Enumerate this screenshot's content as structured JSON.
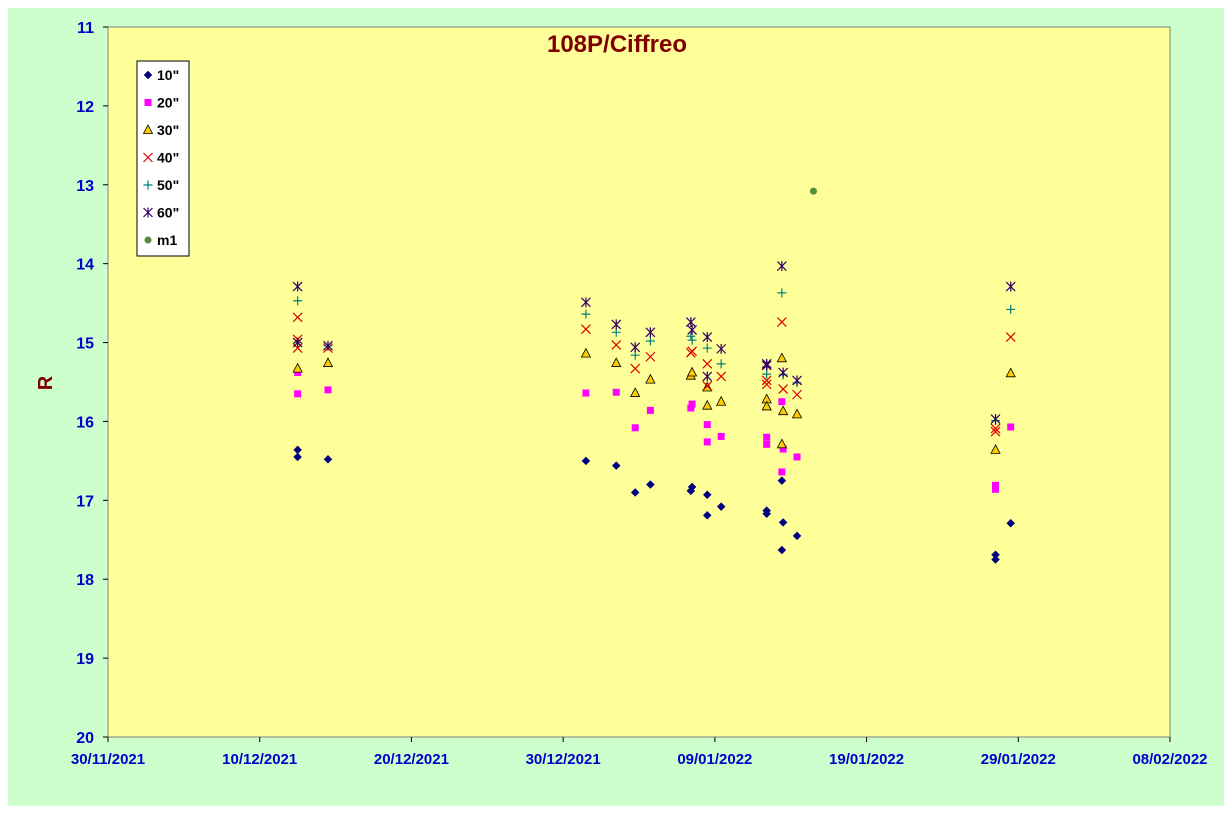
{
  "chart_data": {
    "type": "scatter",
    "title": "108P/Ciffreo",
    "xlabel": "",
    "ylabel": "R",
    "x_axis": {
      "type": "date",
      "min": "30/11/2021",
      "max": "08/02/2022",
      "tick_labels": [
        "30/11/2021",
        "10/12/2021",
        "20/12/2021",
        "30/12/2021",
        "09/01/2022",
        "19/01/2022",
        "29/01/2022",
        "08/02/2022"
      ]
    },
    "y_axis": {
      "min": 11,
      "max": 20,
      "reversed": true,
      "tick_labels": [
        "11",
        "12",
        "13",
        "14",
        "15",
        "16",
        "17",
        "18",
        "19",
        "20"
      ]
    },
    "grid": false,
    "legend_position": "top-left",
    "background": {
      "outer": "#ccffcc",
      "plot": "#ffff99"
    },
    "series": [
      {
        "name": "10\"",
        "marker": "diamond",
        "color": "#000080",
        "points": [
          [
            "12/12/2021 12:00",
            16.36
          ],
          [
            "12/12/2021 12:00",
            16.45
          ],
          [
            "14/12/2021 12:00",
            16.48
          ],
          [
            "31/12/2021 12:00",
            16.5
          ],
          [
            "02/01/2022 12:00",
            16.56
          ],
          [
            "03/01/2022 18:00",
            16.9
          ],
          [
            "04/01/2022 18:00",
            16.8
          ],
          [
            "07/01/2022 10:00",
            16.88
          ],
          [
            "07/01/2022 12:00",
            16.83
          ],
          [
            "08/01/2022 12:00",
            16.93
          ],
          [
            "08/01/2022 12:00",
            17.19
          ],
          [
            "09/01/2022 10:00",
            17.08
          ],
          [
            "12/01/2022 10:00",
            17.13
          ],
          [
            "12/01/2022 10:00",
            17.17
          ],
          [
            "13/01/2022 10:00",
            16.75
          ],
          [
            "13/01/2022 12:00",
            17.28
          ],
          [
            "13/01/2022 10:00",
            17.63
          ],
          [
            "14/01/2022 10:00",
            17.45
          ],
          [
            "27/01/2022 12:00",
            17.69
          ],
          [
            "27/01/2022 12:00",
            17.75
          ],
          [
            "28/01/2022 12:00",
            17.29
          ]
        ]
      },
      {
        "name": "20\"",
        "marker": "square",
        "color": "#ff00ff",
        "points": [
          [
            "12/12/2021 12:00",
            15.38
          ],
          [
            "12/12/2021 12:00",
            15.65
          ],
          [
            "14/12/2021 12:00",
            15.6
          ],
          [
            "31/12/2021 12:00",
            15.64
          ],
          [
            "02/01/2022 12:00",
            15.63
          ],
          [
            "03/01/2022 18:00",
            16.08
          ],
          [
            "04/01/2022 18:00",
            15.86
          ],
          [
            "07/01/2022 10:00",
            15.83
          ],
          [
            "07/01/2022 12:00",
            15.78
          ],
          [
            "08/01/2022 12:00",
            16.04
          ],
          [
            "08/01/2022 12:00",
            16.26
          ],
          [
            "09/01/2022 10:00",
            16.19
          ],
          [
            "12/01/2022 10:00",
            16.2
          ],
          [
            "12/01/2022 10:00",
            16.29
          ],
          [
            "13/01/2022 10:00",
            15.75
          ],
          [
            "13/01/2022 12:00",
            16.35
          ],
          [
            "13/01/2022 10:00",
            16.64
          ],
          [
            "14/01/2022 10:00",
            16.45
          ],
          [
            "27/01/2022 12:00",
            16.81
          ],
          [
            "27/01/2022 12:00",
            16.86
          ],
          [
            "28/01/2022 12:00",
            16.07
          ]
        ]
      },
      {
        "name": "30\"",
        "marker": "triangle",
        "color": "#ffcc00",
        "points": [
          [
            "12/12/2021 12:00",
            15.33
          ],
          [
            "14/12/2021 12:00",
            15.26
          ],
          [
            "31/12/2021 12:00",
            15.14
          ],
          [
            "02/01/2022 12:00",
            15.26
          ],
          [
            "03/01/2022 18:00",
            15.64
          ],
          [
            "04/01/2022 18:00",
            15.47
          ],
          [
            "07/01/2022 10:00",
            15.42
          ],
          [
            "07/01/2022 12:00",
            15.38
          ],
          [
            "08/01/2022 12:00",
            15.57
          ],
          [
            "08/01/2022 12:00",
            15.8
          ],
          [
            "09/01/2022 10:00",
            15.75
          ],
          [
            "12/01/2022 10:00",
            15.72
          ],
          [
            "12/01/2022 10:00",
            15.81
          ],
          [
            "13/01/2022 10:00",
            15.2
          ],
          [
            "13/01/2022 12:00",
            15.87
          ],
          [
            "13/01/2022 10:00",
            16.29
          ],
          [
            "14/01/2022 10:00",
            15.91
          ],
          [
            "27/01/2022 12:00",
            16.36
          ],
          [
            "28/01/2022 12:00",
            15.39
          ]
        ]
      },
      {
        "name": "40\"",
        "marker": "x",
        "color": "#dd0000",
        "points": [
          [
            "12/12/2021 12:00",
            14.68
          ],
          [
            "12/12/2021 12:00",
            14.96
          ],
          [
            "12/12/2021 12:00",
            15.07
          ],
          [
            "14/12/2021 12:00",
            15.07
          ],
          [
            "31/12/2021 12:00",
            14.83
          ],
          [
            "02/01/2022 12:00",
            15.03
          ],
          [
            "03/01/2022 18:00",
            15.33
          ],
          [
            "04/01/2022 18:00",
            15.18
          ],
          [
            "07/01/2022 10:00",
            15.13
          ],
          [
            "07/01/2022 12:00",
            15.11
          ],
          [
            "08/01/2022 12:00",
            15.27
          ],
          [
            "08/01/2022 12:00",
            15.55
          ],
          [
            "09/01/2022 10:00",
            15.43
          ],
          [
            "12/01/2022 10:00",
            15.48
          ],
          [
            "12/01/2022 10:00",
            15.53
          ],
          [
            "13/01/2022 10:00",
            14.74
          ],
          [
            "13/01/2022 12:00",
            15.59
          ],
          [
            "14/01/2022 10:00",
            15.66
          ],
          [
            "27/01/2022 12:00",
            16.09
          ],
          [
            "27/01/2022 12:00",
            16.13
          ],
          [
            "28/01/2022 12:00",
            14.93
          ]
        ]
      },
      {
        "name": "50\"",
        "marker": "plus",
        "color": "#008080",
        "points": [
          [
            "12/12/2021 12:00",
            14.47
          ],
          [
            "12/12/2021 12:00",
            15.0
          ],
          [
            "14/12/2021 12:00",
            15.04
          ],
          [
            "31/12/2021 12:00",
            14.64
          ],
          [
            "02/01/2022 12:00",
            14.87
          ],
          [
            "03/01/2022 18:00",
            15.16
          ],
          [
            "04/01/2022 18:00",
            14.98
          ],
          [
            "07/01/2022 10:00",
            14.92
          ],
          [
            "07/01/2022 12:00",
            14.97
          ],
          [
            "08/01/2022 12:00",
            15.07
          ],
          [
            "09/01/2022 10:00",
            15.27
          ],
          [
            "12/01/2022 10:00",
            15.31
          ],
          [
            "12/01/2022 10:00",
            15.4
          ],
          [
            "13/01/2022 10:00",
            14.37
          ],
          [
            "13/01/2022 12:00",
            15.41
          ],
          [
            "14/01/2022 10:00",
            15.51
          ],
          [
            "27/01/2022 12:00",
            15.99
          ],
          [
            "28/01/2022 12:00",
            14.58
          ]
        ]
      },
      {
        "name": "60\"",
        "marker": "star",
        "color": "#330066",
        "points": [
          [
            "12/12/2021 12:00",
            14.29
          ],
          [
            "12/12/2021 12:00",
            15.0
          ],
          [
            "14/12/2021 12:00",
            15.04
          ],
          [
            "31/12/2021 12:00",
            14.49
          ],
          [
            "02/01/2022 12:00",
            14.77
          ],
          [
            "03/01/2022 18:00",
            15.06
          ],
          [
            "04/01/2022 18:00",
            14.87
          ],
          [
            "07/01/2022 10:00",
            14.74
          ],
          [
            "07/01/2022 12:00",
            14.84
          ],
          [
            "08/01/2022 12:00",
            14.93
          ],
          [
            "08/01/2022 12:00",
            15.43
          ],
          [
            "09/01/2022 10:00",
            15.08
          ],
          [
            "12/01/2022 10:00",
            15.27
          ],
          [
            "12/01/2022 10:00",
            15.29
          ],
          [
            "13/01/2022 10:00",
            14.03
          ],
          [
            "13/01/2022 12:00",
            15.38
          ],
          [
            "14/01/2022 10:00",
            15.48
          ],
          [
            "27/01/2022 12:00",
            15.97
          ],
          [
            "28/01/2022 12:00",
            14.29
          ]
        ]
      },
      {
        "name": "m1",
        "marker": "circle",
        "color": "#558b3a",
        "points": [
          [
            "15/01/2022 12:00",
            13.08
          ]
        ]
      }
    ]
  }
}
